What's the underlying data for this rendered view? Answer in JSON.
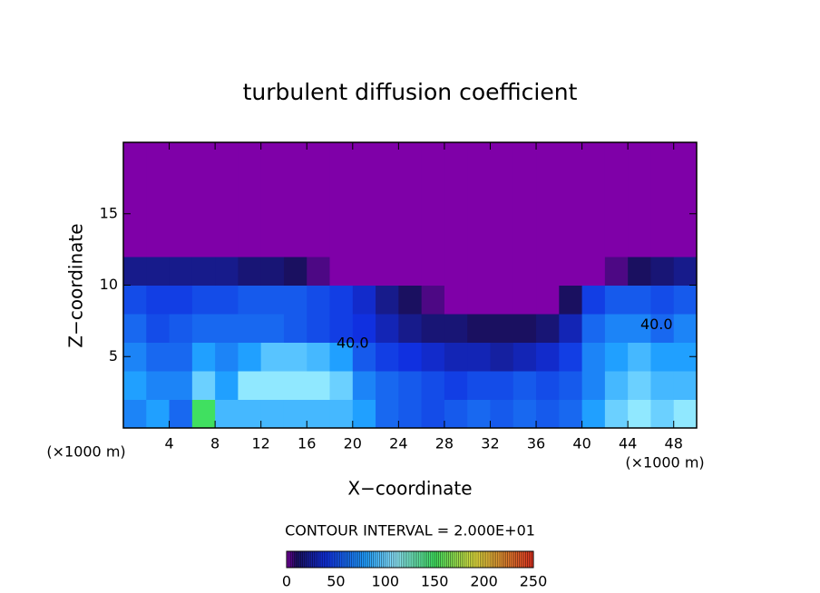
{
  "chart_data": {
    "type": "heatmap",
    "title": "turbulent diffusion coefficient",
    "x_label": "X−coordinate",
    "y_label": "Z−coordinate",
    "x_unit_left": "(×1000 m)",
    "x_unit_right": "(×1000 m)",
    "contour_note": "CONTOUR INTERVAL = 2.000E+01",
    "annotations": [
      "40.0",
      "40.0"
    ],
    "xlim": [
      0,
      50
    ],
    "ylim": [
      0,
      20
    ],
    "xticks": [
      4,
      8,
      12,
      16,
      20,
      24,
      28,
      32,
      36,
      40,
      44,
      48
    ],
    "yticks": [
      5,
      10,
      15
    ],
    "x_edges": [
      0,
      2,
      4,
      6,
      8,
      10,
      12,
      14,
      16,
      18,
      20,
      22,
      24,
      26,
      28,
      30,
      32,
      34,
      36,
      38,
      40,
      42,
      44,
      46,
      48,
      50
    ],
    "y_edges": [
      0,
      2,
      4,
      6,
      8,
      10,
      12,
      14,
      16,
      18,
      20
    ],
    "z": [
      [
        70,
        80,
        60,
        150,
        90,
        90,
        90,
        90,
        90,
        90,
        80,
        60,
        55,
        50,
        55,
        60,
        55,
        60,
        55,
        60,
        80,
        100,
        110,
        100,
        110
      ],
      [
        80,
        70,
        70,
        100,
        80,
        110,
        110,
        110,
        110,
        100,
        70,
        60,
        55,
        50,
        45,
        50,
        50,
        55,
        50,
        55,
        70,
        90,
        100,
        90,
        90
      ],
      [
        70,
        60,
        60,
        80,
        70,
        80,
        95,
        95,
        90,
        80,
        55,
        45,
        40,
        35,
        30,
        30,
        25,
        30,
        35,
        45,
        70,
        80,
        90,
        80,
        80
      ],
      [
        60,
        50,
        55,
        60,
        60,
        60,
        60,
        55,
        50,
        45,
        40,
        30,
        20,
        15,
        15,
        10,
        10,
        10,
        15,
        30,
        60,
        70,
        70,
        60,
        70
      ],
      [
        50,
        45,
        45,
        50,
        50,
        55,
        55,
        55,
        50,
        45,
        35,
        20,
        10,
        5,
        0,
        0,
        0,
        0,
        0,
        10,
        45,
        55,
        55,
        50,
        55
      ],
      [
        20,
        20,
        20,
        20,
        20,
        15,
        15,
        10,
        5,
        0,
        0,
        0,
        0,
        0,
        0,
        0,
        0,
        0,
        0,
        0,
        0,
        5,
        10,
        15,
        20
      ],
      [
        0,
        0,
        0,
        0,
        0,
        0,
        0,
        0,
        0,
        0,
        0,
        0,
        0,
        0,
        0,
        0,
        0,
        0,
        0,
        0,
        0,
        0,
        0,
        0,
        0
      ],
      [
        0,
        0,
        0,
        0,
        0,
        0,
        0,
        0,
        0,
        0,
        0,
        0,
        0,
        0,
        0,
        0,
        0,
        0,
        0,
        0,
        0,
        0,
        0,
        0,
        0
      ],
      [
        0,
        0,
        0,
        0,
        0,
        0,
        0,
        0,
        0,
        0,
        0,
        0,
        0,
        0,
        0,
        0,
        0,
        0,
        0,
        0,
        0,
        0,
        0,
        0,
        0
      ],
      [
        0,
        0,
        0,
        0,
        0,
        0,
        0,
        0,
        0,
        0,
        0,
        0,
        0,
        0,
        0,
        0,
        0,
        0,
        0,
        0,
        0,
        0,
        0,
        0,
        0
      ]
    ],
    "clim": [
      0,
      250
    ],
    "cticks": [
      0,
      50,
      100,
      150,
      200,
      250
    ],
    "colormap": [
      [
        0,
        "#7f00a8"
      ],
      [
        10,
        "#1a1060"
      ],
      [
        40,
        "#1030e0"
      ],
      [
        80,
        "#20a0ff"
      ],
      [
        110,
        "#90e8ff"
      ],
      [
        150,
        "#40e060"
      ],
      [
        190,
        "#e0e040"
      ],
      [
        250,
        "#e03020"
      ]
    ]
  }
}
